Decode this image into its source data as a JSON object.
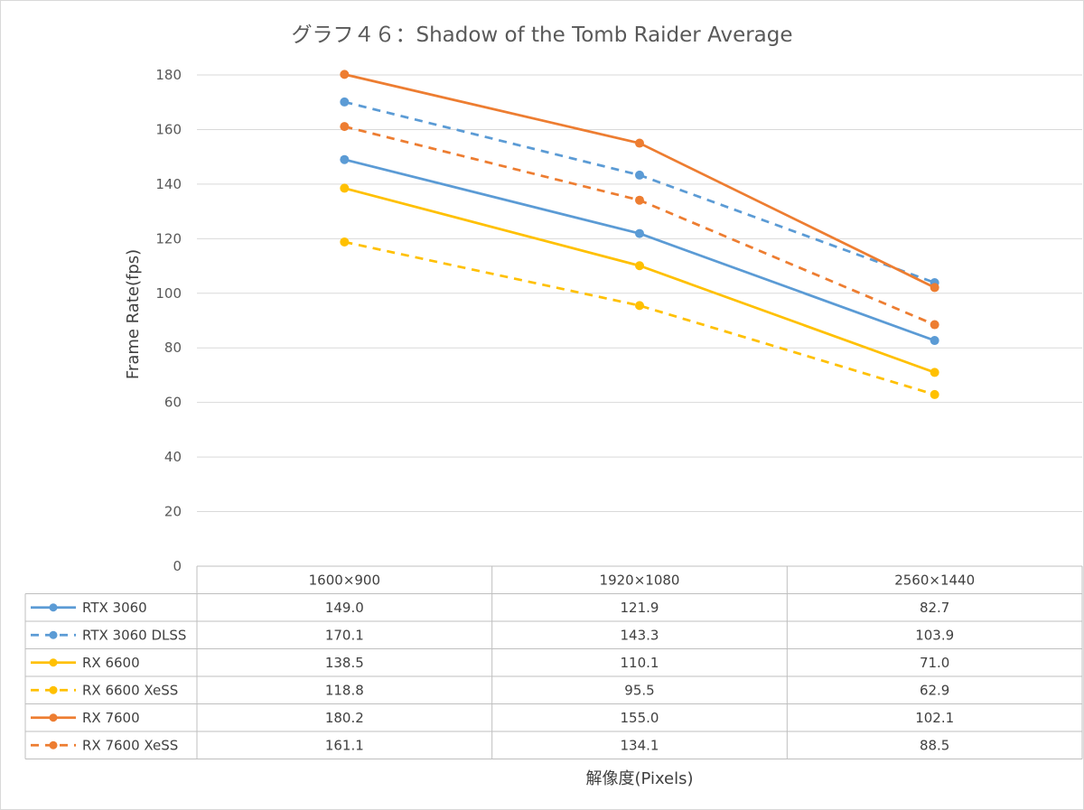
{
  "chart_data": {
    "type": "line",
    "title": "グラフ４６：Shadow of the Tomb Raider Average",
    "xlabel": "解像度(Pixels)",
    "ylabel": "Frame Rate(fps)",
    "ylim": [
      0,
      180
    ],
    "yticks": [
      0,
      20,
      40,
      60,
      80,
      100,
      120,
      140,
      160,
      180
    ],
    "grid": true,
    "legend": "data-table-left",
    "categories": [
      "1600×900",
      "1920×1080",
      "2560×1440"
    ],
    "series": [
      {
        "name": "RTX 3060",
        "values": [
          149.0,
          121.9,
          82.7
        ],
        "display": [
          "149.0",
          "121.9",
          "82.7"
        ],
        "color": "#5B9BD5",
        "dashed": false
      },
      {
        "name": "RTX 3060 DLSS",
        "values": [
          170.1,
          143.3,
          103.9
        ],
        "display": [
          "170.1",
          "143.3",
          "103.9"
        ],
        "color": "#5B9BD5",
        "dashed": true
      },
      {
        "name": "RX 6600",
        "values": [
          138.5,
          110.1,
          71.0
        ],
        "display": [
          "138.5",
          "110.1",
          "71.0"
        ],
        "color": "#FFC000",
        "dashed": false
      },
      {
        "name": "RX 6600 XeSS",
        "values": [
          118.8,
          95.5,
          62.9
        ],
        "display": [
          "118.8",
          "95.5",
          "62.9"
        ],
        "color": "#FFC000",
        "dashed": true
      },
      {
        "name": "RX 7600",
        "values": [
          180.2,
          155.0,
          102.1
        ],
        "display": [
          "180.2",
          "155.0",
          "102.1"
        ],
        "color": "#ED7D31",
        "dashed": false
      },
      {
        "name": "RX 7600 XeSS",
        "values": [
          161.1,
          134.1,
          88.5
        ],
        "display": [
          "161.1",
          "134.1",
          "88.5"
        ],
        "color": "#ED7D31",
        "dashed": true
      }
    ]
  }
}
